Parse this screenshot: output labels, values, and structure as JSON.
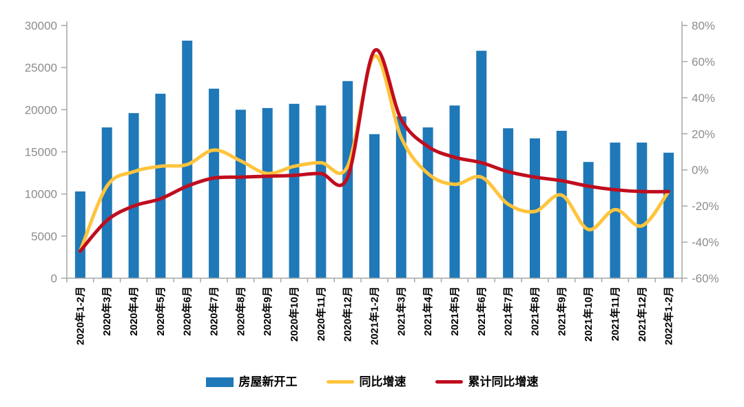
{
  "chart_data": {
    "type": "bar",
    "subtype": "combo-bar-line",
    "title": "",
    "grid": false,
    "legend_position": "bottom",
    "categories": [
      "2020年1-2月",
      "2020年3月",
      "2020年4月",
      "2020年5月",
      "2020年6月",
      "2020年7月",
      "2020年8月",
      "2020年9月",
      "2020年10月",
      "2020年11月",
      "2020年12月",
      "2021年1-2月",
      "2021年3月",
      "2021年4月",
      "2021年5月",
      "2021年6月",
      "2021年7月",
      "2021年8月",
      "2021年9月",
      "2021年10月",
      "2021年11月",
      "2021年12月",
      "2022年1-2月"
    ],
    "series": [
      {
        "name": "房屋新开工",
        "type": "bar",
        "axis": "left",
        "color": "#1F78B8",
        "values": [
          10300,
          17900,
          19600,
          21900,
          28200,
          22500,
          20000,
          20200,
          20700,
          20500,
          23400,
          17100,
          19200,
          17900,
          20500,
          27000,
          17800,
          16600,
          17500,
          13800,
          16100,
          16100,
          14900
        ]
      },
      {
        "name": "同比增速",
        "type": "line",
        "axis": "right",
        "color": "#FFC43D",
        "values": [
          -45,
          -9,
          -1,
          2,
          3,
          11,
          5,
          -2,
          2,
          4,
          2,
          63,
          18,
          -2,
          -8,
          -4,
          -19,
          -23,
          -14,
          -33,
          -22,
          -31,
          -12
        ]
      },
      {
        "name": "累计同比增速",
        "type": "line",
        "axis": "right",
        "color": "#C00D1E",
        "values": [
          -45,
          -28,
          -20,
          -16,
          -9,
          -4.5,
          -4,
          -3.5,
          -3,
          -2,
          -4,
          66,
          28,
          13,
          7,
          4,
          -1,
          -4,
          -6,
          -9,
          -11,
          -12,
          -12
        ]
      }
    ],
    "left_axis": {
      "min": 0,
      "max": 30000,
      "step": 5000,
      "ticks": [
        "0",
        "5000",
        "10000",
        "15000",
        "20000",
        "25000",
        "30000"
      ]
    },
    "right_axis": {
      "min": -60,
      "max": 80,
      "step": 20,
      "ticks": [
        "-60%",
        "-40%",
        "-20%",
        "0%",
        "20%",
        "40%",
        "60%",
        "80%"
      ]
    },
    "axis_text_color": "#8C8C8C",
    "axis_line_color": "#A6A6A6",
    "x_label_color": "#000000"
  }
}
